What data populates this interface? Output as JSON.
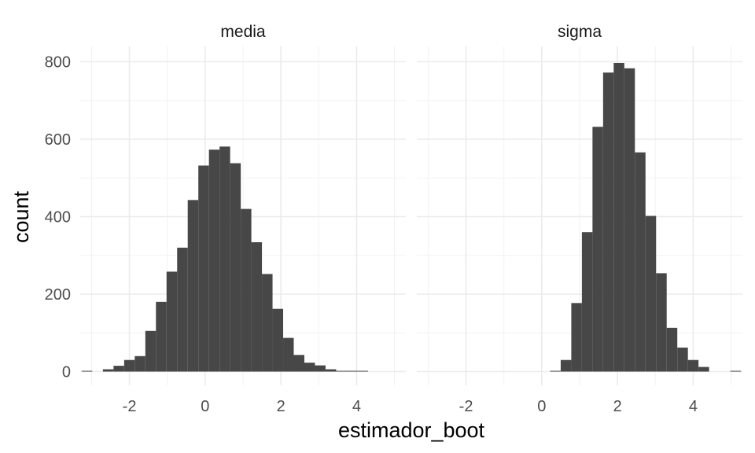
{
  "chart_data": {
    "type": "bar",
    "xlabel": "estimador_boot",
    "ylabel": "count",
    "xlim": [
      -3.3,
      5.3
    ],
    "ylim": [
      0,
      800
    ],
    "x_ticks": [
      -2,
      0,
      2,
      4
    ],
    "y_ticks": [
      0,
      200,
      400,
      600,
      800
    ],
    "grid": true,
    "bin_width": 0.28,
    "bar_color": "#474747",
    "panels": [
      {
        "title": "media",
        "bin_starts": [
          -3.26,
          -2.98,
          -2.7,
          -2.42,
          -2.14,
          -1.86,
          -1.58,
          -1.3,
          -1.02,
          -0.74,
          -0.46,
          -0.18,
          0.1,
          0.38,
          0.66,
          0.94,
          1.22,
          1.5,
          1.78,
          2.06,
          2.34,
          2.62,
          2.9,
          3.18,
          3.46,
          3.74,
          4.02
        ],
        "counts": [
          2,
          0,
          6,
          15,
          30,
          40,
          105,
          180,
          258,
          320,
          443,
          532,
          573,
          581,
          538,
          420,
          334,
          252,
          162,
          87,
          43,
          23,
          16,
          6,
          2,
          2,
          2
        ]
      },
      {
        "title": "sigma",
        "bin_starts": [
          0.22,
          0.5,
          0.78,
          1.06,
          1.34,
          1.62,
          1.9,
          2.18,
          2.46,
          2.74,
          3.02,
          3.3,
          3.58,
          3.86,
          4.14,
          4.42,
          4.7,
          4.98
        ],
        "counts": [
          2,
          30,
          177,
          360,
          632,
          772,
          797,
          783,
          566,
          402,
          254,
          113,
          62,
          30,
          12,
          0,
          0,
          2
        ]
      }
    ]
  }
}
